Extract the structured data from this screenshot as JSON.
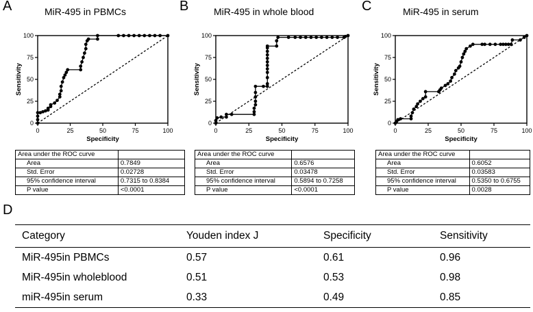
{
  "chart_data": [
    {
      "type": "line",
      "panel": "A",
      "title": "MiR-495 in PBMCs",
      "xlabel": "Specificity",
      "ylabel": "Sensitivity",
      "xlim": [
        0,
        100
      ],
      "ylim": [
        0,
        100
      ],
      "xticks": [
        "0",
        "25",
        "50",
        "75",
        "100"
      ],
      "yticks": [
        "0",
        "25",
        "50",
        "75",
        "100"
      ],
      "reference_line": "diagonal",
      "points": [
        [
          0,
          0
        ],
        [
          0,
          4
        ],
        [
          0,
          8
        ],
        [
          0,
          12
        ],
        [
          2,
          12
        ],
        [
          4,
          13
        ],
        [
          6,
          14
        ],
        [
          8,
          15
        ],
        [
          8,
          17
        ],
        [
          10,
          19
        ],
        [
          10,
          21
        ],
        [
          13,
          23
        ],
        [
          15,
          26
        ],
        [
          17,
          30
        ],
        [
          17,
          33
        ],
        [
          18,
          37
        ],
        [
          18,
          42
        ],
        [
          19,
          47
        ],
        [
          20,
          52
        ],
        [
          21,
          55
        ],
        [
          22,
          58
        ],
        [
          23,
          61
        ],
        [
          33,
          61
        ],
        [
          33,
          65
        ],
        [
          34,
          70
        ],
        [
          35,
          75
        ],
        [
          36,
          80
        ],
        [
          37,
          85
        ],
        [
          37,
          90
        ],
        [
          38,
          94
        ],
        [
          39,
          96
        ],
        [
          46,
          96
        ],
        [
          46,
          100
        ],
        [
          62,
          100
        ],
        [
          66,
          100
        ],
        [
          70,
          100
        ],
        [
          74,
          100
        ],
        [
          78,
          100
        ],
        [
          82,
          100
        ],
        [
          86,
          100
        ],
        [
          90,
          100
        ],
        [
          94,
          100
        ],
        [
          100,
          100
        ]
      ],
      "table": {
        "header": "Area under the ROC curve",
        "rows": [
          {
            "label": "Area",
            "value": "0.7849"
          },
          {
            "label": "Std. Error",
            "value": "0.02728"
          },
          {
            "label": "95% confidence interval",
            "value": "0.7315 to 0.8384"
          },
          {
            "label": "P value",
            "value": "<0.0001"
          }
        ]
      }
    },
    {
      "type": "line",
      "panel": "B",
      "title": "MiR-495 in whole blood",
      "xlabel": "Specificity",
      "ylabel": "Sensitivity",
      "xlim": [
        0,
        100
      ],
      "ylim": [
        0,
        100
      ],
      "xticks": [
        "0",
        "25",
        "50",
        "75",
        "100"
      ],
      "yticks": [
        "0",
        "25",
        "50",
        "75",
        "100"
      ],
      "reference_line": "diagonal",
      "points": [
        [
          0,
          0
        ],
        [
          0,
          3
        ],
        [
          1,
          6
        ],
        [
          4,
          7
        ],
        [
          8,
          7
        ],
        [
          8,
          10
        ],
        [
          12,
          10
        ],
        [
          29,
          10
        ],
        [
          29,
          13
        ],
        [
          29,
          17
        ],
        [
          30,
          21
        ],
        [
          30,
          25
        ],
        [
          30,
          30
        ],
        [
          30,
          35
        ],
        [
          30,
          42
        ],
        [
          36,
          42
        ],
        [
          39,
          42
        ],
        [
          39,
          45
        ],
        [
          39,
          52
        ],
        [
          39,
          58
        ],
        [
          39,
          62
        ],
        [
          39,
          66
        ],
        [
          39,
          70
        ],
        [
          39,
          74
        ],
        [
          39,
          78
        ],
        [
          39,
          82
        ],
        [
          39,
          86
        ],
        [
          39,
          88
        ],
        [
          46,
          88
        ],
        [
          46,
          94
        ],
        [
          47,
          98
        ],
        [
          55,
          98
        ],
        [
          60,
          98
        ],
        [
          64,
          98
        ],
        [
          68,
          98
        ],
        [
          72,
          98
        ],
        [
          76,
          98
        ],
        [
          80,
          98
        ],
        [
          84,
          98
        ],
        [
          88,
          98
        ],
        [
          92,
          98
        ],
        [
          97,
          98
        ],
        [
          98,
          99
        ],
        [
          100,
          100
        ]
      ],
      "table": {
        "header": "Area under the ROC curve",
        "rows": [
          {
            "label": "Area",
            "value": "0.6576"
          },
          {
            "label": "Std. Error",
            "value": "0.03478"
          },
          {
            "label": "95% confidence interval",
            "value": "0.5894 to 0.7258"
          },
          {
            "label": "P value",
            "value": "<0.0001"
          }
        ]
      }
    },
    {
      "type": "line",
      "panel": "C",
      "title": "MiR-495 in serum",
      "xlabel": "Specificity",
      "ylabel": "Sensitivity",
      "xlim": [
        0,
        100
      ],
      "ylim": [
        0,
        100
      ],
      "xticks": [
        "0",
        "25",
        "50",
        "75",
        "100"
      ],
      "yticks": [
        "0",
        "25",
        "50",
        "75",
        "100"
      ],
      "reference_line": "diagonal",
      "points": [
        [
          0,
          0
        ],
        [
          1,
          2
        ],
        [
          2,
          4
        ],
        [
          4,
          5
        ],
        [
          12,
          5
        ],
        [
          12,
          8
        ],
        [
          13,
          12
        ],
        [
          14,
          16
        ],
        [
          16,
          19
        ],
        [
          17,
          22
        ],
        [
          19,
          25
        ],
        [
          21,
          28
        ],
        [
          23,
          30
        ],
        [
          23,
          36
        ],
        [
          33,
          36
        ],
        [
          34,
          38
        ],
        [
          35,
          40
        ],
        [
          38,
          43
        ],
        [
          40,
          45
        ],
        [
          42,
          48
        ],
        [
          43,
          52
        ],
        [
          45,
          56
        ],
        [
          46,
          60
        ],
        [
          48,
          63
        ],
        [
          49,
          65
        ],
        [
          50,
          70
        ],
        [
          51,
          75
        ],
        [
          52,
          79
        ],
        [
          53,
          82
        ],
        [
          54,
          85
        ],
        [
          57,
          88
        ],
        [
          59,
          90
        ],
        [
          66,
          90
        ],
        [
          68,
          90
        ],
        [
          72,
          90
        ],
        [
          76,
          90
        ],
        [
          80,
          90
        ],
        [
          82,
          90
        ],
        [
          84,
          90
        ],
        [
          86,
          90
        ],
        [
          88,
          90
        ],
        [
          89,
          95
        ],
        [
          95,
          95
        ],
        [
          98,
          98
        ],
        [
          100,
          100
        ]
      ],
      "table": {
        "header": "Area under the ROC curve",
        "rows": [
          {
            "label": "Area",
            "value": "0.6052"
          },
          {
            "label": "Std. Error",
            "value": "0.03583"
          },
          {
            "label": "95% confidence interval",
            "value": "0.5350 to 0.6755"
          },
          {
            "label": "P value",
            "value": "0.0028"
          }
        ]
      }
    },
    {
      "type": "table",
      "panel": "D",
      "columns": [
        "Category",
        "Youden index J",
        "Specificity",
        "Sensitivity"
      ],
      "rows": [
        [
          "MiR-495in PBMCs",
          "0.57",
          "0.61",
          "0.96"
        ],
        [
          "MiR-495in wholeblood",
          "0.51",
          "0.53",
          "0.98"
        ],
        [
          "miR-495in serum",
          "0.33",
          "0.49",
          "0.85"
        ]
      ]
    }
  ]
}
